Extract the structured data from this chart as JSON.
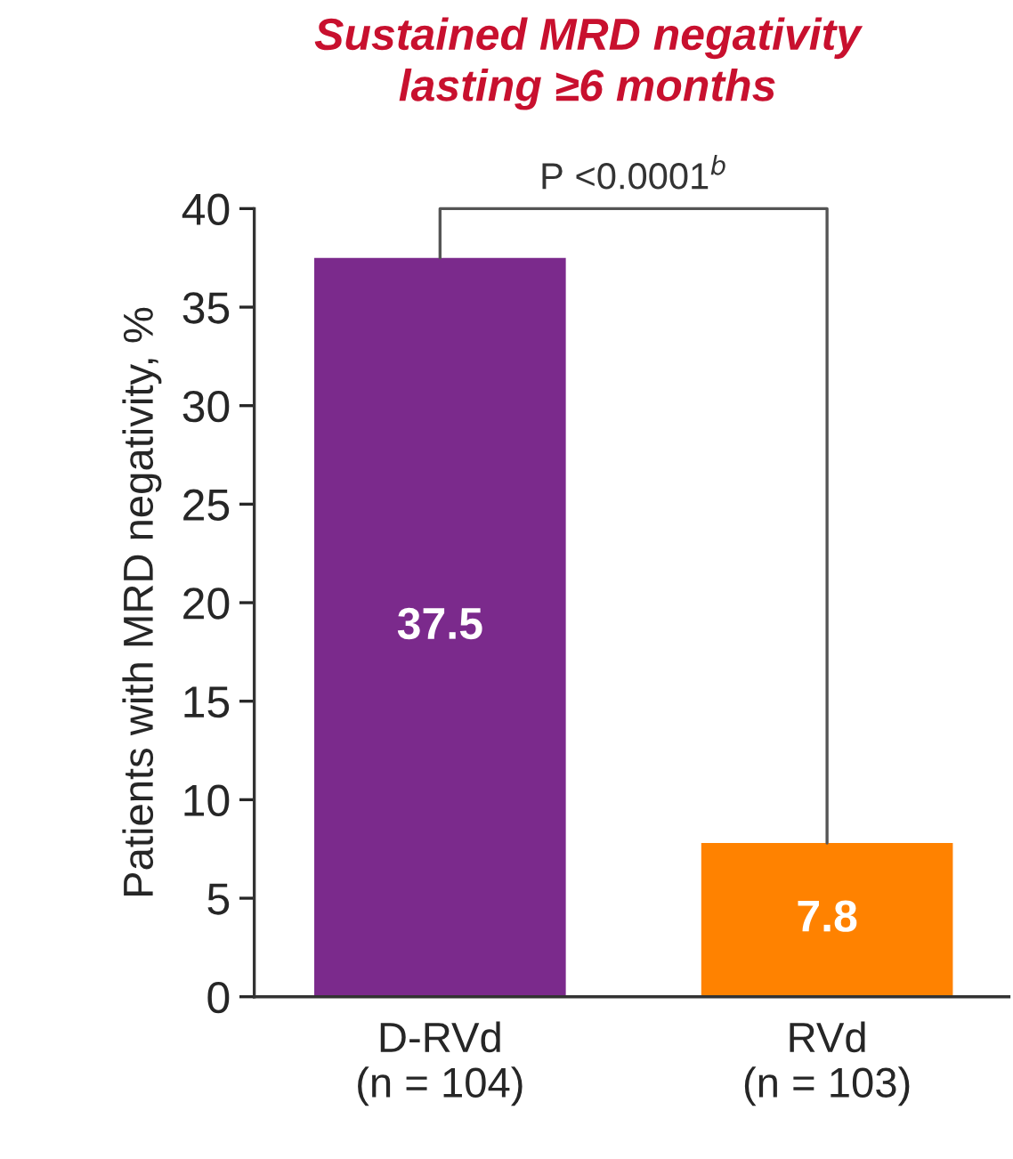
{
  "chart_data": {
    "type": "bar",
    "title": "Sustained MRD negativity\nlasting ≥6 months",
    "ylabel": "Patients with MRD negativity, %",
    "categories": [
      "D-RVd\n(n = 104)",
      "RVd\n(n = 103)"
    ],
    "values": [
      37.5,
      7.8
    ],
    "colors": [
      "#7b2a8c",
      "#ff8200"
    ],
    "ylim": [
      0,
      40
    ],
    "yticks": [
      0,
      5,
      10,
      15,
      20,
      25,
      30,
      35,
      40
    ],
    "data_labels": true,
    "grid": false,
    "annotations": [
      "P <0.0001$^{b}$"
    ]
  }
}
